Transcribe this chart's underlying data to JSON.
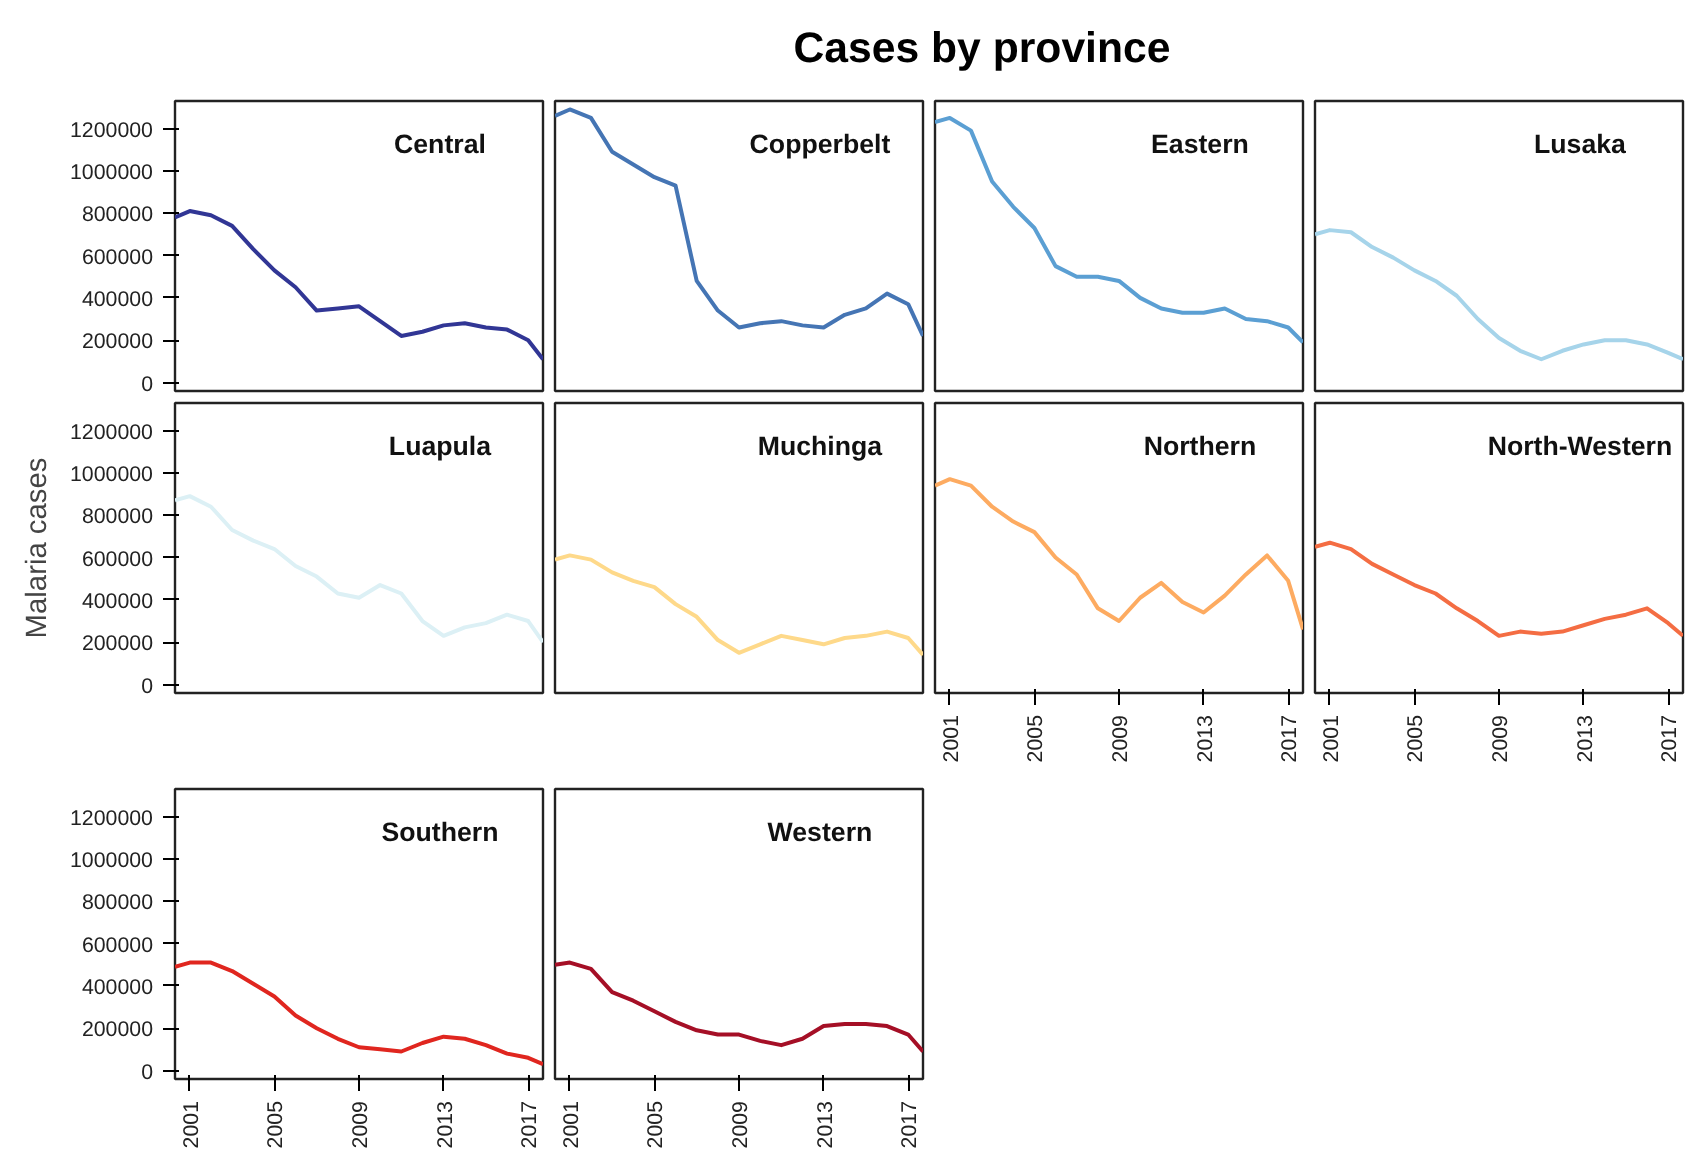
{
  "chart_data": [
    {
      "type": "other",
      "title": "Cases by province"
    },
    {
      "type": "line",
      "title": "Central",
      "color": "#313695",
      "x": [
        2000.3,
        2001,
        2002,
        2003,
        2004,
        2005,
        2006,
        2007,
        2008,
        2009,
        2010,
        2011,
        2012,
        2013,
        2014,
        2015,
        2016,
        2017,
        2017.7
      ],
      "values": [
        780000,
        810000,
        790000,
        740000,
        630000,
        530000,
        450000,
        340000,
        350000,
        360000,
        290000,
        220000,
        240000,
        270000,
        280000,
        260000,
        250000,
        200000,
        110000
      ],
      "xlim": [
        2000.3,
        2017.7
      ],
      "ylim": [
        -40000,
        1330000
      ],
      "xticks": [
        2001,
        2005,
        2009,
        2013,
        2017
      ],
      "yticks": [
        0,
        200000,
        400000,
        600000,
        800000,
        1000000,
        1200000
      ],
      "tick_labels": "y"
    },
    {
      "type": "line",
      "title": "Copperbelt",
      "color": "#4575b4",
      "x": [
        2000.3,
        2001,
        2002,
        2003,
        2004,
        2005,
        2006,
        2007,
        2008,
        2009,
        2010,
        2011,
        2012,
        2013,
        2014,
        2015,
        2016,
        2017,
        2017.7
      ],
      "values": [
        1260000,
        1290000,
        1250000,
        1090000,
        1030000,
        970000,
        930000,
        480000,
        340000,
        260000,
        280000,
        290000,
        270000,
        260000,
        320000,
        350000,
        420000,
        370000,
        220000
      ],
      "xlim": [
        2000.3,
        2017.7
      ],
      "ylim": [
        -40000,
        1330000
      ],
      "xticks": [
        2001,
        2005,
        2009,
        2013,
        2017
      ],
      "yticks": [
        0,
        200000,
        400000,
        600000,
        800000,
        1000000,
        1200000
      ],
      "tick_labels": false
    },
    {
      "type": "line",
      "title": "Eastern",
      "color": "#5b9fd3",
      "x": [
        2000.3,
        2001,
        2002,
        2003,
        2004,
        2005,
        2006,
        2007,
        2008,
        2009,
        2010,
        2011,
        2012,
        2013,
        2014,
        2015,
        2016,
        2017,
        2017.7
      ],
      "values": [
        1230000,
        1250000,
        1190000,
        950000,
        830000,
        730000,
        550000,
        500000,
        500000,
        480000,
        400000,
        350000,
        330000,
        330000,
        350000,
        300000,
        290000,
        260000,
        190000
      ],
      "xlim": [
        2000.3,
        2017.7
      ],
      "ylim": [
        -40000,
        1330000
      ],
      "xticks": [
        2001,
        2005,
        2009,
        2013,
        2017
      ],
      "yticks": [
        0,
        200000,
        400000,
        600000,
        800000,
        1000000,
        1200000
      ],
      "tick_labels": false
    },
    {
      "type": "line",
      "title": "Lusaka",
      "color": "#a6d4ea",
      "x": [
        2000.3,
        2001,
        2002,
        2003,
        2004,
        2005,
        2006,
        2007,
        2008,
        2009,
        2010,
        2011,
        2012,
        2013,
        2014,
        2015,
        2016,
        2017,
        2017.7
      ],
      "values": [
        700000,
        720000,
        710000,
        640000,
        590000,
        530000,
        480000,
        410000,
        300000,
        210000,
        150000,
        110000,
        150000,
        180000,
        200000,
        200000,
        180000,
        140000,
        110000
      ],
      "xlim": [
        2000.3,
        2017.7
      ],
      "ylim": [
        -40000,
        1330000
      ],
      "xticks": [
        2001,
        2005,
        2009,
        2013,
        2017
      ],
      "yticks": [
        0,
        200000,
        400000,
        600000,
        800000,
        1000000,
        1200000
      ],
      "tick_labels": false
    },
    {
      "type": "line",
      "title": "Luapula",
      "ylabel": "Malaria cases",
      "color": "#dcf0f5",
      "x": [
        2000.3,
        2001,
        2002,
        2003,
        2004,
        2005,
        2006,
        2007,
        2008,
        2009,
        2010,
        2011,
        2012,
        2013,
        2014,
        2015,
        2016,
        2017,
        2017.7
      ],
      "values": [
        870000,
        890000,
        840000,
        730000,
        680000,
        640000,
        560000,
        510000,
        430000,
        410000,
        470000,
        430000,
        300000,
        230000,
        270000,
        290000,
        330000,
        300000,
        200000
      ],
      "xlim": [
        2000.3,
        2017.7
      ],
      "ylim": [
        -40000,
        1330000
      ],
      "xticks": [
        2001,
        2005,
        2009,
        2013,
        2017
      ],
      "yticks": [
        0,
        200000,
        400000,
        600000,
        800000,
        1000000,
        1200000
      ],
      "tick_labels": "y"
    },
    {
      "type": "line",
      "title": "Muchinga",
      "color": "#fed98a",
      "x": [
        2000.3,
        2001,
        2002,
        2003,
        2004,
        2005,
        2006,
        2007,
        2008,
        2009,
        2010,
        2011,
        2012,
        2013,
        2014,
        2015,
        2016,
        2017,
        2017.7
      ],
      "values": [
        590000,
        610000,
        590000,
        530000,
        490000,
        460000,
        380000,
        320000,
        210000,
        150000,
        190000,
        230000,
        210000,
        190000,
        220000,
        230000,
        250000,
        220000,
        140000
      ],
      "xlim": [
        2000.3,
        2017.7
      ],
      "ylim": [
        -40000,
        1330000
      ],
      "xticks": [
        2001,
        2005,
        2009,
        2013,
        2017
      ],
      "yticks": [
        0,
        200000,
        400000,
        600000,
        800000,
        1000000,
        1200000
      ],
      "tick_labels": false
    },
    {
      "type": "line",
      "title": "Northern",
      "color": "#fdab61",
      "x": [
        2000.3,
        2001,
        2002,
        2003,
        2004,
        2005,
        2006,
        2007,
        2008,
        2009,
        2010,
        2011,
        2012,
        2013,
        2014,
        2015,
        2016,
        2017,
        2017.7
      ],
      "values": [
        940000,
        970000,
        940000,
        840000,
        770000,
        720000,
        600000,
        520000,
        360000,
        300000,
        410000,
        480000,
        390000,
        340000,
        420000,
        520000,
        610000,
        490000,
        260000
      ],
      "xlim": [
        2000.3,
        2017.7
      ],
      "ylim": [
        -40000,
        1330000
      ],
      "xticks": [
        2001,
        2005,
        2009,
        2013,
        2017
      ],
      "yticks": [
        0,
        200000,
        400000,
        600000,
        800000,
        1000000,
        1200000
      ],
      "tick_labels": "x"
    },
    {
      "type": "line",
      "title": "North-Western",
      "color": "#f46d43",
      "x": [
        2000.3,
        2001,
        2002,
        2003,
        2004,
        2005,
        2006,
        2007,
        2008,
        2009,
        2010,
        2011,
        2012,
        2013,
        2014,
        2015,
        2016,
        2017,
        2017.7
      ],
      "values": [
        650000,
        670000,
        640000,
        570000,
        520000,
        470000,
        430000,
        360000,
        300000,
        230000,
        250000,
        240000,
        250000,
        280000,
        310000,
        330000,
        360000,
        290000,
        230000
      ],
      "xlim": [
        2000.3,
        2017.7
      ],
      "ylim": [
        -40000,
        1330000
      ],
      "xticks": [
        2001,
        2005,
        2009,
        2013,
        2017
      ],
      "yticks": [
        0,
        200000,
        400000,
        600000,
        800000,
        1000000,
        1200000
      ],
      "tick_labels": "x"
    },
    {
      "type": "line",
      "title": "Southern",
      "color": "#e0261f",
      "x": [
        2000.3,
        2001,
        2002,
        2003,
        2004,
        2005,
        2006,
        2007,
        2008,
        2009,
        2010,
        2011,
        2012,
        2013,
        2014,
        2015,
        2016,
        2017,
        2017.7
      ],
      "values": [
        490000,
        510000,
        510000,
        470000,
        410000,
        350000,
        260000,
        200000,
        150000,
        110000,
        100000,
        90000,
        130000,
        160000,
        150000,
        120000,
        80000,
        60000,
        30000
      ],
      "xlim": [
        2000.3,
        2017.7
      ],
      "ylim": [
        -40000,
        1330000
      ],
      "xticks": [
        2001,
        2005,
        2009,
        2013,
        2017
      ],
      "yticks": [
        0,
        200000,
        400000,
        600000,
        800000,
        1000000,
        1200000
      ]
    },
    {
      "type": "line",
      "title": "Western",
      "color": "#a50f26",
      "x": [
        2000.3,
        2001,
        2002,
        2003,
        2004,
        2005,
        2006,
        2007,
        2008,
        2009,
        2010,
        2011,
        2012,
        2013,
        2014,
        2015,
        2016,
        2017,
        2017.7
      ],
      "values": [
        500000,
        510000,
        480000,
        370000,
        330000,
        280000,
        230000,
        190000,
        170000,
        170000,
        140000,
        120000,
        150000,
        210000,
        220000,
        220000,
        210000,
        170000,
        90000
      ],
      "xlim": [
        2000.3,
        2017.7
      ],
      "ylim": [
        -40000,
        1330000
      ],
      "xticks": [
        2001,
        2005,
        2009,
        2013,
        2017
      ],
      "yticks": [
        0,
        200000,
        400000,
        600000,
        800000,
        1000000,
        1200000
      ],
      "tick_labels": "x"
    }
  ]
}
